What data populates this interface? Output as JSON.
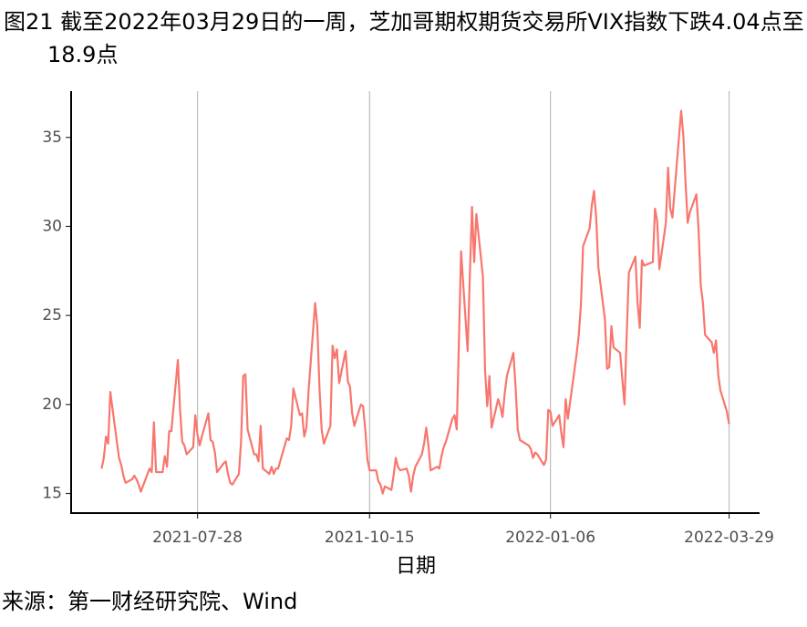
{
  "chart_data": {
    "type": "line",
    "title": "图21  截至2022年03月29日的一周，芝加哥期权期货交易所VIX指数下跌4.04点至18.9点",
    "x_label": "日期",
    "source": "来源：第一财经研究院、Wind",
    "x": [
      "2021-06-14",
      "2021-06-15",
      "2021-06-16",
      "2021-06-17",
      "2021-06-18",
      "2021-06-21",
      "2021-06-22",
      "2021-06-23",
      "2021-06-24",
      "2021-06-25",
      "2021-06-28",
      "2021-06-29",
      "2021-06-30",
      "2021-07-01",
      "2021-07-02",
      "2021-07-06",
      "2021-07-07",
      "2021-07-08",
      "2021-07-09",
      "2021-07-12",
      "2021-07-13",
      "2021-07-14",
      "2021-07-15",
      "2021-07-16",
      "2021-07-19",
      "2021-07-20",
      "2021-07-21",
      "2021-07-22",
      "2021-07-23",
      "2021-07-26",
      "2021-07-27",
      "2021-07-28",
      "2021-07-29",
      "2021-07-30",
      "2021-08-02",
      "2021-08-03",
      "2021-08-04",
      "2021-08-05",
      "2021-08-06",
      "2021-08-09",
      "2021-08-10",
      "2021-08-11",
      "2021-08-12",
      "2021-08-13",
      "2021-08-16",
      "2021-08-17",
      "2021-08-18",
      "2021-08-19",
      "2021-08-20",
      "2021-08-23",
      "2021-08-24",
      "2021-08-25",
      "2021-08-26",
      "2021-08-27",
      "2021-08-30",
      "2021-08-31",
      "2021-09-01",
      "2021-09-02",
      "2021-09-03",
      "2021-09-07",
      "2021-09-08",
      "2021-09-09",
      "2021-09-10",
      "2021-09-13",
      "2021-09-14",
      "2021-09-15",
      "2021-09-16",
      "2021-09-17",
      "2021-09-20",
      "2021-09-21",
      "2021-09-22",
      "2021-09-23",
      "2021-09-24",
      "2021-09-27",
      "2021-09-28",
      "2021-09-29",
      "2021-09-30",
      "2021-10-01",
      "2021-10-04",
      "2021-10-05",
      "2021-10-06",
      "2021-10-07",
      "2021-10-08",
      "2021-10-11",
      "2021-10-12",
      "2021-10-13",
      "2021-10-14",
      "2021-10-15",
      "2021-10-18",
      "2021-10-19",
      "2021-10-20",
      "2021-10-21",
      "2021-10-22",
      "2021-10-25",
      "2021-10-26",
      "2021-10-27",
      "2021-10-28",
      "2021-10-29",
      "2021-11-01",
      "2021-11-02",
      "2021-11-03",
      "2021-11-04",
      "2021-11-05",
      "2021-11-08",
      "2021-11-09",
      "2021-11-10",
      "2021-11-11",
      "2021-11-12",
      "2021-11-15",
      "2021-11-16",
      "2021-11-17",
      "2021-11-18",
      "2021-11-19",
      "2021-11-22",
      "2021-11-23",
      "2021-11-24",
      "2021-11-26",
      "2021-11-29",
      "2021-11-30",
      "2021-12-01",
      "2021-12-02",
      "2021-12-03",
      "2021-12-06",
      "2021-12-07",
      "2021-12-08",
      "2021-12-09",
      "2021-12-10",
      "2021-12-13",
      "2021-12-14",
      "2021-12-15",
      "2021-12-16",
      "2021-12-17",
      "2021-12-20",
      "2021-12-21",
      "2021-12-22",
      "2021-12-23",
      "2021-12-27",
      "2021-12-28",
      "2021-12-29",
      "2021-12-30",
      "2021-12-31",
      "2022-01-03",
      "2022-01-04",
      "2022-01-05",
      "2022-01-06",
      "2022-01-07",
      "2022-01-10",
      "2022-01-11",
      "2022-01-12",
      "2022-01-13",
      "2022-01-14",
      "2022-01-18",
      "2022-01-19",
      "2022-01-20",
      "2022-01-21",
      "2022-01-24",
      "2022-01-25",
      "2022-01-26",
      "2022-01-27",
      "2022-01-28",
      "2022-01-31",
      "2022-02-01",
      "2022-02-02",
      "2022-02-03",
      "2022-02-04",
      "2022-02-07",
      "2022-02-08",
      "2022-02-09",
      "2022-02-10",
      "2022-02-11",
      "2022-02-14",
      "2022-02-15",
      "2022-02-16",
      "2022-02-17",
      "2022-02-18",
      "2022-02-22",
      "2022-02-23",
      "2022-02-24",
      "2022-02-25",
      "2022-02-28",
      "2022-03-01",
      "2022-03-02",
      "2022-03-03",
      "2022-03-04",
      "2022-03-07",
      "2022-03-08",
      "2022-03-09",
      "2022-03-10",
      "2022-03-11",
      "2022-03-14",
      "2022-03-15",
      "2022-03-16",
      "2022-03-17",
      "2022-03-18",
      "2022-03-21",
      "2022-03-22",
      "2022-03-23",
      "2022-03-24",
      "2022-03-25",
      "2022-03-28",
      "2022-03-29"
    ],
    "series": [
      {
        "name": "VIX",
        "color": "#f8766d",
        "values": [
          16.4,
          17.0,
          18.2,
          17.8,
          20.7,
          17.9,
          17.0,
          16.6,
          16.0,
          15.6,
          15.8,
          16.0,
          15.8,
          15.5,
          15.1,
          16.4,
          16.2,
          19.0,
          16.2,
          16.2,
          17.1,
          16.5,
          18.5,
          18.5,
          22.5,
          19.7,
          17.9,
          17.7,
          17.2,
          17.6,
          19.4,
          18.3,
          17.7,
          18.2,
          19.5,
          18.0,
          17.9,
          17.3,
          16.2,
          16.7,
          16.8,
          16.1,
          15.6,
          15.5,
          16.1,
          17.9,
          21.6,
          21.7,
          18.6,
          17.2,
          17.2,
          16.8,
          18.8,
          16.4,
          16.1,
          16.5,
          16.1,
          16.4,
          16.4,
          18.1,
          18.0,
          18.8,
          20.9,
          19.4,
          19.5,
          18.2,
          18.7,
          20.8,
          25.7,
          24.4,
          20.9,
          18.6,
          17.8,
          18.8,
          23.3,
          22.6,
          23.1,
          21.2,
          23.0,
          21.3,
          21.0,
          19.5,
          18.8,
          20.0,
          19.9,
          18.6,
          16.9,
          16.3,
          16.3,
          15.7,
          15.5,
          15.0,
          15.4,
          15.2,
          16.0,
          17.0,
          16.5,
          16.3,
          16.4,
          16.0,
          15.1,
          16.0,
          16.5,
          17.2,
          17.8,
          18.7,
          17.7,
          16.3,
          16.5,
          16.4,
          17.1,
          17.6,
          17.9,
          19.2,
          19.4,
          18.6,
          28.6,
          23.0,
          27.2,
          31.1,
          28.0,
          30.7,
          27.2,
          21.9,
          19.9,
          21.6,
          18.7,
          20.3,
          19.9,
          19.3,
          20.6,
          21.6,
          22.9,
          21.0,
          18.6,
          18.0,
          17.7,
          17.5,
          17.0,
          17.3,
          17.2,
          16.6,
          16.9,
          19.7,
          19.6,
          18.8,
          19.4,
          18.4,
          17.6,
          20.3,
          19.2,
          22.8,
          23.9,
          25.6,
          28.9,
          29.9,
          31.2,
          32.0,
          30.5,
          27.7,
          24.8,
          22.0,
          22.1,
          24.4,
          23.2,
          22.9,
          21.4,
          20.0,
          23.9,
          27.4,
          28.3,
          25.7,
          24.3,
          28.1,
          27.8,
          28.0,
          31.0,
          30.3,
          27.6,
          30.2,
          33.3,
          31.0,
          30.5,
          32.0,
          36.5,
          35.1,
          32.5,
          30.2,
          30.8,
          31.8,
          29.8,
          26.7,
          25.7,
          23.9,
          23.5,
          22.9,
          23.6,
          21.7,
          20.8,
          19.6,
          18.9
        ]
      }
    ],
    "xlim": [
      "2021-05-31",
      "2022-04-12"
    ],
    "xticks": [
      "2021-07-28",
      "2021-10-15",
      "2022-01-06",
      "2022-03-29"
    ],
    "ylim": [
      13.9,
      37.6
    ],
    "yticks": [
      15,
      20,
      25,
      30,
      35
    ],
    "grid": "x"
  }
}
